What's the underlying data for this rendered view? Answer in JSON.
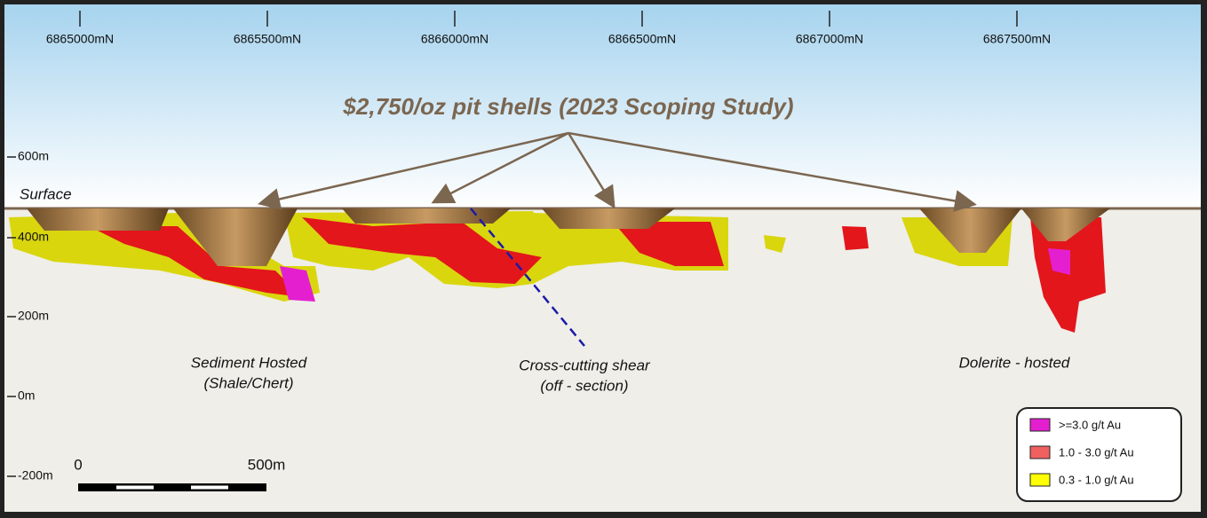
{
  "northings": [
    "6865000mN",
    "6865500mN",
    "6866000mN",
    "6866500mN",
    "6867000mN",
    "6867500mN"
  ],
  "elevations": [
    "600m",
    "400m",
    "200m",
    "0m",
    "-200m"
  ],
  "surface_label": "Surface",
  "title": "$2,750/oz pit shells (2023 Scoping Study)",
  "annotations": {
    "sediment": [
      "Sediment Hosted",
      "(Shale/Chert)"
    ],
    "shear": [
      "Cross-cutting shear",
      "(off - section)"
    ],
    "dolerite": [
      "Dolerite - hosted"
    ]
  },
  "scale_bar": {
    "start": "0",
    "end": "500m"
  },
  "legend": [
    {
      "label": ">=3.0 g/t Au",
      "color": "#e41fd0"
    },
    {
      "label": "1.0 - 3.0 g/t Au",
      "color": "#f06060"
    },
    {
      "label": "0.3 - 1.0 g/t Au",
      "color": "#ffff00"
    }
  ]
}
